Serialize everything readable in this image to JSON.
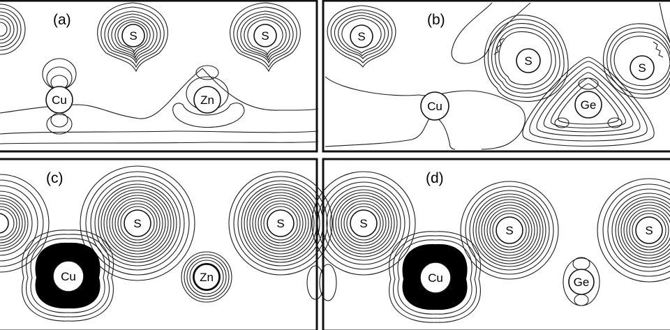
{
  "panels": [
    {
      "id": "a",
      "label": "(a)",
      "atoms": [
        "S",
        "S",
        "Cu",
        "Zn"
      ]
    },
    {
      "id": "b",
      "label": "(b)",
      "atoms": [
        "S",
        "S",
        "S",
        "Cu",
        "Ge"
      ]
    },
    {
      "id": "c",
      "label": "(c)",
      "atoms": [
        "S",
        "S",
        "S",
        "Cu",
        "Zn"
      ]
    },
    {
      "id": "d",
      "label": "(d)",
      "atoms": [
        "S",
        "S",
        "S",
        "Cu",
        "Ge"
      ]
    }
  ],
  "colors": {
    "line": "#1a1a1a",
    "background": "#ffffff",
    "dense_fill": "#000000"
  }
}
